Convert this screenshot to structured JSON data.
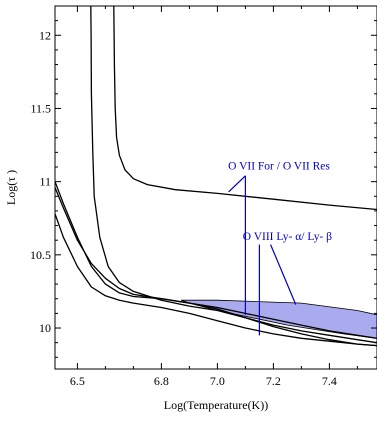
{
  "chart_data": {
    "type": "line",
    "xlabel": "Log(Temperature(K))",
    "ylabel": "Log(τ )",
    "xlim": [
      6.42,
      7.57
    ],
    "ylim": [
      9.72,
      12.2
    ],
    "xticks": [
      6.5,
      6.6,
      6.7,
      6.8,
      6.9,
      7.0,
      7.1,
      7.2,
      7.3,
      7.4,
      7.5
    ],
    "xtick_labels": [
      "6.5",
      "",
      "",
      "6.8",
      "",
      "7.0",
      "",
      "7.2",
      "",
      "7.4",
      ""
    ],
    "yticks": [
      9.8,
      9.9,
      10.0,
      10.1,
      10.2,
      10.3,
      10.4,
      10.5,
      10.6,
      10.7,
      10.8,
      10.9,
      11.0,
      11.1,
      11.2,
      11.3,
      11.4,
      11.5,
      11.6,
      11.7,
      11.8,
      11.9,
      12.0,
      12.1
    ],
    "ytick_labels": [
      "",
      "",
      "10",
      "",
      "",
      "",
      "",
      "10.5",
      "",
      "",
      "",
      "",
      "11",
      "",
      "",
      "",
      "",
      "11.5",
      "",
      "",
      "",
      "",
      "12",
      ""
    ],
    "grid": false,
    "series": [
      {
        "x": [
          6.63,
          6.632,
          6.635,
          6.64,
          6.65,
          6.67,
          6.7,
          6.75,
          6.85,
          7.0,
          7.2,
          7.4,
          7.57
        ],
        "y": [
          12.2,
          11.8,
          11.5,
          11.3,
          11.18,
          11.08,
          11.02,
          10.98,
          10.945,
          10.92,
          10.88,
          10.84,
          10.81
        ],
        "color": "#000000"
      },
      {
        "x": [
          6.548,
          6.549,
          6.55,
          6.555,
          6.56,
          6.58,
          6.61,
          6.65,
          6.7,
          6.8,
          6.9,
          7.0,
          7.1,
          7.2,
          7.3,
          7.4,
          7.5,
          7.57
        ],
        "y": [
          12.2,
          12.0,
          11.6,
          11.2,
          10.9,
          10.62,
          10.42,
          10.31,
          10.25,
          10.19,
          10.15,
          10.12,
          10.07,
          10.02,
          9.98,
          9.95,
          9.92,
          9.9
        ],
        "color": "#000000"
      },
      {
        "x": [
          6.42,
          6.45,
          6.5,
          6.55,
          6.6,
          6.65,
          6.7,
          6.8,
          6.9,
          7.0,
          7.1,
          7.2,
          7.3,
          7.4,
          7.5,
          7.57
        ],
        "y": [
          11.0,
          10.85,
          10.62,
          10.42,
          10.3,
          10.24,
          10.215,
          10.2,
          10.17,
          10.13,
          10.07,
          10.01,
          9.96,
          9.92,
          9.89,
          9.88
        ],
        "color": "#000000"
      },
      {
        "x": [
          6.42,
          6.45,
          6.5,
          6.55,
          6.6,
          6.65,
          6.7,
          6.8,
          6.9,
          7.0,
          7.1,
          7.2,
          7.3,
          7.4,
          7.5,
          7.57
        ],
        "y": [
          10.96,
          10.82,
          10.6,
          10.44,
          10.34,
          10.27,
          10.23,
          10.2,
          10.17,
          10.14,
          10.1,
          10.06,
          10.02,
          9.98,
          9.95,
          9.93
        ],
        "color": "#000000"
      },
      {
        "x": [
          6.42,
          6.45,
          6.5,
          6.55,
          6.6,
          6.65,
          6.7,
          6.8,
          6.9,
          7.0,
          7.1,
          7.2,
          7.3,
          7.4,
          7.5,
          7.57
        ],
        "y": [
          10.78,
          10.62,
          10.42,
          10.28,
          10.22,
          10.19,
          10.17,
          10.14,
          10.1,
          10.05,
          10.0,
          9.96,
          9.93,
          9.91,
          9.89,
          9.88
        ],
        "color": "#000000"
      }
    ],
    "shaded_region": {
      "fill": "#aaaaee",
      "x": [
        6.87,
        7.0,
        7.3,
        7.5,
        7.57,
        7.57,
        7.45,
        7.35,
        7.25,
        7.15,
        7.05,
        6.98,
        6.92,
        6.87
      ],
      "y": [
        10.19,
        10.19,
        10.17,
        10.12,
        10.09,
        9.93,
        9.96,
        9.99,
        10.02,
        10.06,
        10.1,
        10.13,
        10.16,
        10.19
      ]
    },
    "annotations": [
      {
        "text": "O VII For / O VII Res",
        "color": "#0000cc",
        "text_x": 7.22,
        "text_y": 11.11,
        "pointers": [
          [
            7.1,
            11.04,
            7.1,
            10.09
          ],
          [
            7.1,
            11.04,
            7.04,
            10.93
          ]
        ]
      },
      {
        "text": "O VIII Ly- α/ Ly- β",
        "color": "#0000cc",
        "text_x": 7.25,
        "text_y": 10.63,
        "pointers": [
          [
            7.15,
            10.57,
            7.15,
            9.95
          ],
          [
            7.19,
            10.57,
            7.28,
            10.16
          ]
        ]
      }
    ]
  }
}
